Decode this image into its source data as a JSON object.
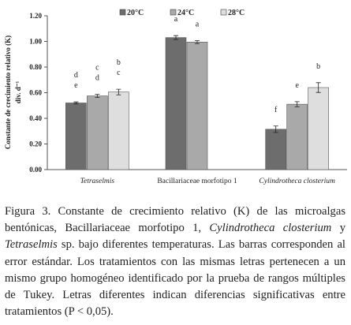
{
  "chart_data": {
    "type": "bar",
    "ylabel": "Constante de crecimiento relativo (K)",
    "yunit": "div. d⁻¹",
    "categories": [
      "Tetraselmis",
      "Bacillariaceae morfotipo 1",
      "Cylindrotheca closterium"
    ],
    "series": [
      {
        "name": "20°C",
        "color": "#6d6d6d",
        "values": [
          0.52,
          1.03,
          0.315
        ],
        "errors": [
          0.008,
          0.015,
          0.025
        ],
        "letters": [
          [
            "d",
            "e"
          ],
          [
            "a"
          ],
          [
            "f"
          ]
        ]
      },
      {
        "name": "24°C",
        "color": "#a9a9a9",
        "values": [
          0.575,
          0.995,
          0.51
        ],
        "errors": [
          0.012,
          0.012,
          0.02
        ],
        "letters": [
          [
            "c",
            "d"
          ],
          [
            "a"
          ],
          [
            "e"
          ]
        ]
      },
      {
        "name": "28°C",
        "color": "#dedede",
        "values": [
          0.605,
          null,
          0.64
        ],
        "errors": [
          0.022,
          null,
          0.038
        ],
        "letters": [
          [
            "b",
            "c"
          ],
          null,
          [
            "b"
          ]
        ]
      }
    ],
    "ylim": [
      0,
      1.2
    ],
    "yticks": [
      {
        "value": 0,
        "label": "0.00"
      },
      {
        "value": 0.2,
        "label": "0.20"
      },
      {
        "value": 0.4,
        "label": "0.40"
      },
      {
        "value": 0.6,
        "label": "0.60"
      },
      {
        "value": 0.8,
        "label": "0.80"
      },
      {
        "value": 1.0,
        "label": "1.00"
      },
      {
        "value": 1.2,
        "label": "1.20"
      }
    ]
  },
  "caption": [
    "Figura 3. Constante de crecimiento relativo (K) de las microalgas bentónicas, Bacillariaceae morfotipo 1, ",
    "Cylindrotheca closterium",
    " y ",
    "Tetraselmis",
    " sp. bajo diferentes temperaturas. Las barras corresponden al error estándar. Los tratamientos con las mismas letras pertenecen a un mismo grupo homogéneo identificado por la prueba de rangos múltiples de Tukey. Letras diferentes indican diferencias significativas entre tratamientos (P < 0,05)."
  ]
}
